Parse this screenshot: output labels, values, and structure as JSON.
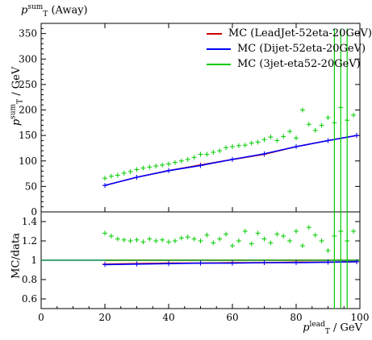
{
  "page": {
    "title": "(Away)",
    "title_symbol": "p",
    "title_sup": "sum",
    "title_sub": "T"
  },
  "axes": {
    "y_main_label": "/ GeV",
    "y_ratio_label": "MC/data",
    "x_label": "/ GeV",
    "x_label_sup": "lead",
    "y_label_sup": "sum"
  },
  "legend": [
    {
      "label": "MC (LeadJet-52eta-20GeV)",
      "color": "#cc0000"
    },
    {
      "label": "MC (Dijet-52eta-20GeV)",
      "color": "#0000ff"
    },
    {
      "label": "MC (3jet-eta52-20GeV)",
      "color": "#00cc00"
    }
  ],
  "chart_data": {
    "type": "scatter",
    "xlim": [
      0,
      100
    ],
    "main": {
      "ylim": [
        0,
        370
      ],
      "yticks": [
        0,
        50,
        100,
        150,
        200,
        250,
        300,
        350
      ],
      "series": [
        {
          "name": "MC (LeadJet-52eta-20GeV)",
          "color": "#cc0000",
          "x": [
            20,
            30,
            40,
            50,
            60,
            70,
            80,
            90,
            99
          ],
          "y": [
            52,
            68,
            81,
            92,
            103,
            113,
            128,
            140,
            150
          ]
        },
        {
          "name": "MC (Dijet-52eta-20GeV)",
          "color": "#0000ff",
          "x": [
            20,
            30,
            40,
            50,
            60,
            70,
            80,
            90,
            99
          ],
          "y": [
            52,
            68,
            81,
            91,
            103,
            114,
            128,
            140,
            150
          ]
        },
        {
          "name": "MC (3jet-eta52-20GeV)",
          "color": "#00cc00",
          "x": [
            20,
            22,
            24,
            26,
            28,
            30,
            32,
            34,
            36,
            38,
            40,
            42,
            44,
            46,
            48,
            50,
            52,
            54,
            56,
            58,
            60,
            62,
            64,
            66,
            68,
            70,
            72,
            74,
            76,
            78,
            80,
            82,
            84,
            86,
            88,
            90,
            92,
            94,
            96,
            98
          ],
          "y": [
            66,
            70,
            72,
            76,
            79,
            83,
            86,
            88,
            90,
            92,
            94,
            97,
            100,
            103,
            107,
            113,
            113,
            117,
            120,
            126,
            128,
            130,
            131,
            135,
            137,
            142,
            147,
            140,
            148,
            158,
            145,
            200,
            172,
            160,
            170,
            185,
            175,
            205,
            180,
            190
          ]
        }
      ]
    },
    "ratio": {
      "ylim": [
        0.5,
        1.5
      ],
      "yticks": [
        0.6,
        0.8,
        1,
        1.2,
        1.4
      ],
      "series": [
        {
          "name": "MC (LeadJet-52eta-20GeV)",
          "color": "#cc0000",
          "x": [
            20,
            30,
            40,
            50,
            60,
            70,
            80,
            90,
            99
          ],
          "y": [
            0.96,
            0.965,
            0.97,
            0.97,
            0.975,
            0.975,
            0.98,
            0.98,
            0.985
          ]
        },
        {
          "name": "MC (Dijet-52eta-20GeV)",
          "color": "#0000ff",
          "x": [
            20,
            30,
            40,
            50,
            60,
            70,
            80,
            90,
            99
          ],
          "y": [
            0.955,
            0.96,
            0.965,
            0.97,
            0.97,
            0.975,
            0.975,
            0.98,
            0.985
          ]
        },
        {
          "name": "MC (3jet-eta52-20GeV)",
          "color": "#00cc00",
          "x": [
            20,
            22,
            24,
            26,
            28,
            30,
            32,
            34,
            36,
            38,
            40,
            42,
            44,
            46,
            48,
            50,
            52,
            54,
            56,
            58,
            60,
            62,
            64,
            66,
            68,
            70,
            72,
            74,
            76,
            78,
            80,
            82,
            84,
            86,
            88,
            90,
            92,
            94,
            96,
            98
          ],
          "y": [
            1.28,
            1.25,
            1.22,
            1.21,
            1.2,
            1.21,
            1.19,
            1.22,
            1.2,
            1.21,
            1.19,
            1.2,
            1.23,
            1.24,
            1.22,
            1.2,
            1.26,
            1.18,
            1.22,
            1.27,
            1.15,
            1.2,
            1.3,
            1.17,
            1.28,
            1.22,
            1.18,
            1.27,
            1.25,
            1.2,
            1.3,
            1.15,
            1.34,
            1.26,
            1.2,
            1.1,
            1.25,
            1.3,
            1.2,
            1.3
          ]
        }
      ]
    },
    "xticks": [
      0,
      20,
      40,
      60,
      80,
      100
    ]
  }
}
